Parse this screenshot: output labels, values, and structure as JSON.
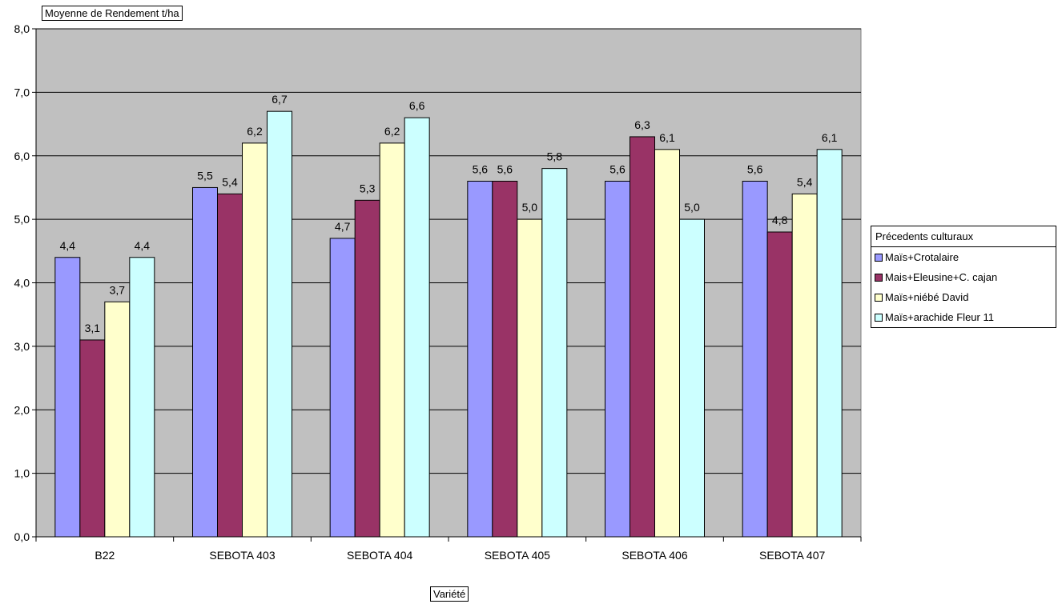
{
  "chart_data": {
    "type": "bar",
    "ylabel": "Moyenne de Rendement t/ha",
    "xlabel": "Variété",
    "legend_title": "Précedents culturaux",
    "legend_position": "right",
    "grid": true,
    "ylim": [
      0,
      8
    ],
    "y_ticks": [
      "0,0",
      "1,0",
      "2,0",
      "3,0",
      "4,0",
      "5,0",
      "6,0",
      "7,0",
      "8,0"
    ],
    "categories": [
      "B22",
      "SEBOTA 403",
      "SEBOTA 404",
      "SEBOTA 405",
      "SEBOTA 406",
      "SEBOTA 407"
    ],
    "series": [
      {
        "name": "Maïs+Crotalaire",
        "color": "#9999ff",
        "values": [
          4.4,
          5.5,
          4.7,
          5.6,
          5.6,
          5.6
        ],
        "labels": [
          "4,4",
          "5,5",
          "4,7",
          "5,6",
          "5,6",
          "5,6"
        ]
      },
      {
        "name": "Mais+Eleusine+C. cajan",
        "color": "#993366",
        "values": [
          3.1,
          5.4,
          5.3,
          5.6,
          6.3,
          4.8
        ],
        "labels": [
          "3,1",
          "5,4",
          "5,3",
          "5,6",
          "6,3",
          "4,8"
        ]
      },
      {
        "name": "Maïs+niébé David",
        "color": "#ffffcc",
        "values": [
          3.7,
          6.2,
          6.2,
          5.0,
          6.1,
          5.4
        ],
        "labels": [
          "3,7",
          "6,2",
          "6,2",
          "5,0",
          "6,1",
          "5,4"
        ]
      },
      {
        "name": "Maïs+arachide Fleur 11",
        "color": "#ccffff",
        "values": [
          4.4,
          6.7,
          6.6,
          5.8,
          5.0,
          6.1
        ],
        "labels": [
          "4,4",
          "6,7",
          "6,6",
          "5,8",
          "5,0",
          "6,1"
        ]
      }
    ],
    "plot_background": "#c0c0c0"
  }
}
